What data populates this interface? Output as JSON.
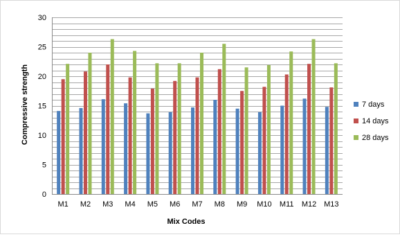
{
  "chart_data": {
    "type": "bar",
    "title": "",
    "xlabel": "Mix Codes",
    "ylabel": "Compressive strength",
    "ylim": [
      0,
      30
    ],
    "yticks": [
      0,
      5,
      10,
      15,
      20,
      25,
      30
    ],
    "minor_grid_step": 1,
    "grid": true,
    "legend_position": "right",
    "categories": [
      "M1",
      "M2",
      "M3",
      "M4",
      "M5",
      "M6",
      "M7",
      "M8",
      "M9",
      "M10",
      "M11",
      "M12",
      "M13"
    ],
    "series": [
      {
        "name": "7 days",
        "color": "#4f81bd",
        "values": [
          14.1,
          14.6,
          16.1,
          15.4,
          13.7,
          13.9,
          14.7,
          16.0,
          14.5,
          13.9,
          15.0,
          16.2,
          14.8
        ]
      },
      {
        "name": "14 days",
        "color": "#c0504d",
        "values": [
          19.5,
          20.8,
          22.0,
          19.8,
          17.9,
          19.2,
          19.8,
          21.2,
          17.5,
          18.2,
          20.3,
          22.1,
          18.1
        ]
      },
      {
        "name": "28 days",
        "color": "#9bbb59",
        "values": [
          22.1,
          24.0,
          26.3,
          24.3,
          22.2,
          22.2,
          24.0,
          25.5,
          21.5,
          21.9,
          24.2,
          26.3,
          22.2
        ]
      }
    ]
  }
}
